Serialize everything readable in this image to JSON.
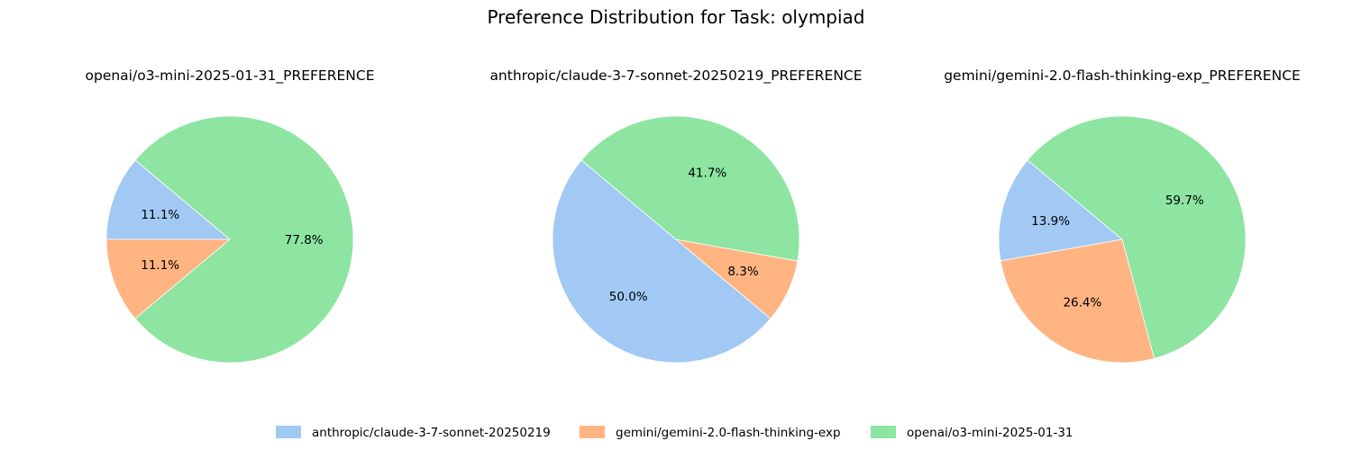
{
  "title": "Preference Distribution for Task: olympiad",
  "colors": {
    "anthropic/claude-3-7-sonnet-20250219": "#a1c9f4",
    "gemini/gemini-2.0-flash-thinking-exp": "#ffb482",
    "openai/o3-mini-2025-01-31": "#8de5a1"
  },
  "legend": {
    "placement": "bottom-center",
    "entries": [
      "anthropic/claude-3-7-sonnet-20250219",
      "gemini/gemini-2.0-flash-thinking-exp",
      "openai/o3-mini-2025-01-31"
    ]
  },
  "chart_data": [
    {
      "type": "pie",
      "title": "openai/o3-mini-2025-01-31_PREFERENCE",
      "categories": [
        "anthropic/claude-3-7-sonnet-20250219",
        "gemini/gemini-2.0-flash-thinking-exp",
        "openai/o3-mini-2025-01-31"
      ],
      "values": [
        11.1,
        11.1,
        77.8
      ],
      "labels": [
        "11.1%",
        "11.1%",
        "77.8%"
      ],
      "start_angle_deg": 140
    },
    {
      "type": "pie",
      "title": "anthropic/claude-3-7-sonnet-20250219_PREFERENCE",
      "categories": [
        "anthropic/claude-3-7-sonnet-20250219",
        "gemini/gemini-2.0-flash-thinking-exp",
        "openai/o3-mini-2025-01-31"
      ],
      "values": [
        50.0,
        8.3,
        41.7
      ],
      "labels": [
        "50.0%",
        "8.3%",
        "41.7%"
      ],
      "start_angle_deg": 140
    },
    {
      "type": "pie",
      "title": "gemini/gemini-2.0-flash-thinking-exp_PREFERENCE",
      "categories": [
        "anthropic/claude-3-7-sonnet-20250219",
        "gemini/gemini-2.0-flash-thinking-exp",
        "openai/o3-mini-2025-01-31"
      ],
      "values": [
        13.9,
        26.4,
        59.7
      ],
      "labels": [
        "13.9%",
        "26.4%",
        "59.7%"
      ],
      "start_angle_deg": 140
    }
  ]
}
